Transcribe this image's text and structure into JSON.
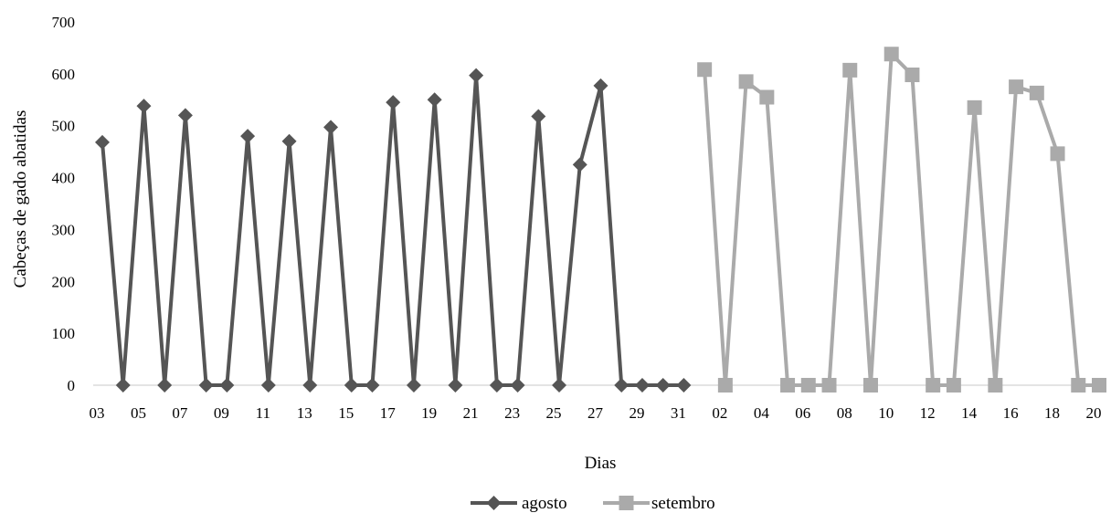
{
  "chart_data": {
    "type": "line",
    "ylabel": "Cabeças de gado abatidas",
    "xlabel": "Dias",
    "ylim": [
      0,
      700
    ],
    "yticks": [
      0,
      100,
      200,
      300,
      400,
      500,
      600,
      700
    ],
    "grid": false,
    "legend_position": "bottom",
    "x_tick_labels": [
      "03",
      "05",
      "07",
      "09",
      "11",
      "13",
      "15",
      "17",
      "19",
      "21",
      "23",
      "25",
      "27",
      "29",
      "31",
      "02",
      "04",
      "06",
      "08",
      "10",
      "12",
      "14",
      "16",
      "18",
      "20"
    ],
    "series": [
      {
        "name": "agosto",
        "color": "#555555",
        "marker": "diamond",
        "x": [
          "03",
          "04",
          "05",
          "06",
          "07",
          "08",
          "09",
          "10",
          "11",
          "12",
          "13",
          "14",
          "15",
          "16",
          "17",
          "18",
          "19",
          "20",
          "21",
          "22",
          "23",
          "24",
          "25",
          "26",
          "27",
          "28",
          "29",
          "30",
          "31"
        ],
        "values": [
          468,
          0,
          538,
          0,
          520,
          0,
          0,
          480,
          0,
          470,
          0,
          497,
          0,
          0,
          545,
          0,
          550,
          0,
          597,
          0,
          0,
          518,
          0,
          425,
          577,
          0,
          0,
          0,
          0
        ]
      },
      {
        "name": "setembro",
        "color": "#aaaaaa",
        "marker": "square",
        "x": [
          "01",
          "02",
          "03",
          "04",
          "05",
          "06",
          "07",
          "08",
          "09",
          "10",
          "11",
          "12",
          "13",
          "14",
          "15",
          "16",
          "17",
          "18",
          "19",
          "20"
        ],
        "values": [
          608,
          0,
          585,
          555,
          0,
          0,
          0,
          607,
          0,
          638,
          598,
          0,
          0,
          535,
          0,
          575,
          563,
          446,
          0,
          0
        ]
      }
    ]
  }
}
